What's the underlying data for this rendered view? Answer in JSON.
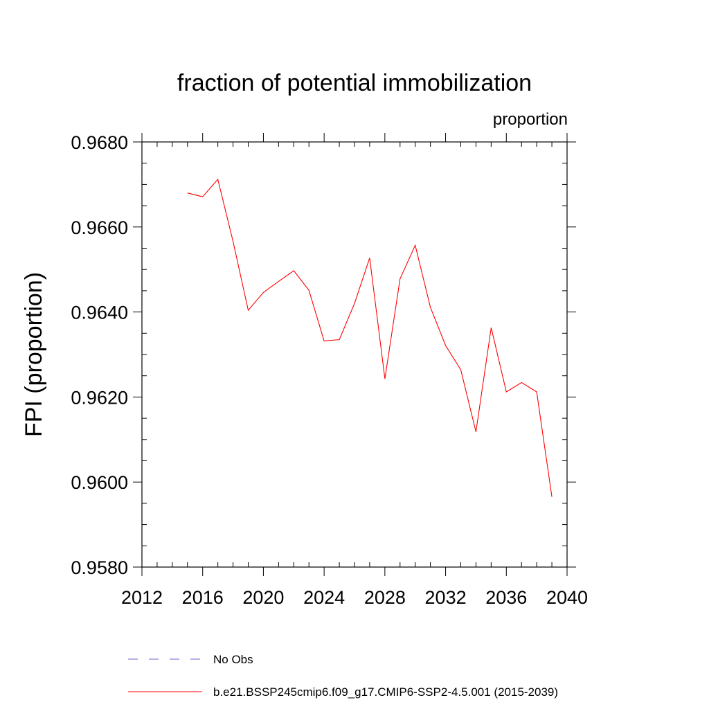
{
  "chart_data": {
    "type": "line",
    "title": "fraction of potential immobilization",
    "units_label": "proportion",
    "xlabel": "",
    "ylabel": "FPI  (proportion)",
    "xlim": [
      2012,
      2040
    ],
    "ylim": [
      0.958,
      0.968
    ],
    "x_ticks": [
      2012,
      2016,
      2020,
      2024,
      2028,
      2032,
      2036,
      2040
    ],
    "y_ticks": [
      0.958,
      0.96,
      0.962,
      0.964,
      0.966,
      0.968
    ],
    "y_tick_labels": [
      "0.9580",
      "0.9600",
      "0.9620",
      "0.9640",
      "0.9660",
      "0.9680"
    ],
    "grid": false,
    "legend_position": "bottom",
    "series": [
      {
        "name": "b.e21.BSSP245cmip6.f09_g17.CMIP6-SSP2-4.5.001 (2015-2039)",
        "color": "#ff0000",
        "style": "solid",
        "x": [
          2015,
          2016,
          2017,
          2018,
          2019,
          2020,
          2021,
          2022,
          2023,
          2024,
          2025,
          2026,
          2027,
          2028,
          2029,
          2030,
          2031,
          2032,
          2033,
          2034,
          2035,
          2036,
          2037,
          2038,
          2039
        ],
        "y": [
          0.9668,
          0.96671,
          0.96712,
          0.96566,
          0.96404,
          0.96446,
          0.96472,
          0.96497,
          0.96451,
          0.96332,
          0.96335,
          0.9642,
          0.96527,
          0.96243,
          0.96478,
          0.96557,
          0.96411,
          0.96321,
          0.96264,
          0.96118,
          0.96363,
          0.96212,
          0.96234,
          0.96212,
          0.95965
        ]
      }
    ],
    "legend": [
      {
        "label": "No Obs",
        "color": "#6666cc",
        "style": "dashed"
      },
      {
        "label": "b.e21.BSSP245cmip6.f09_g17.CMIP6-SSP2-4.5.001 (2015-2039)",
        "color": "#ff0000",
        "style": "solid"
      }
    ]
  }
}
